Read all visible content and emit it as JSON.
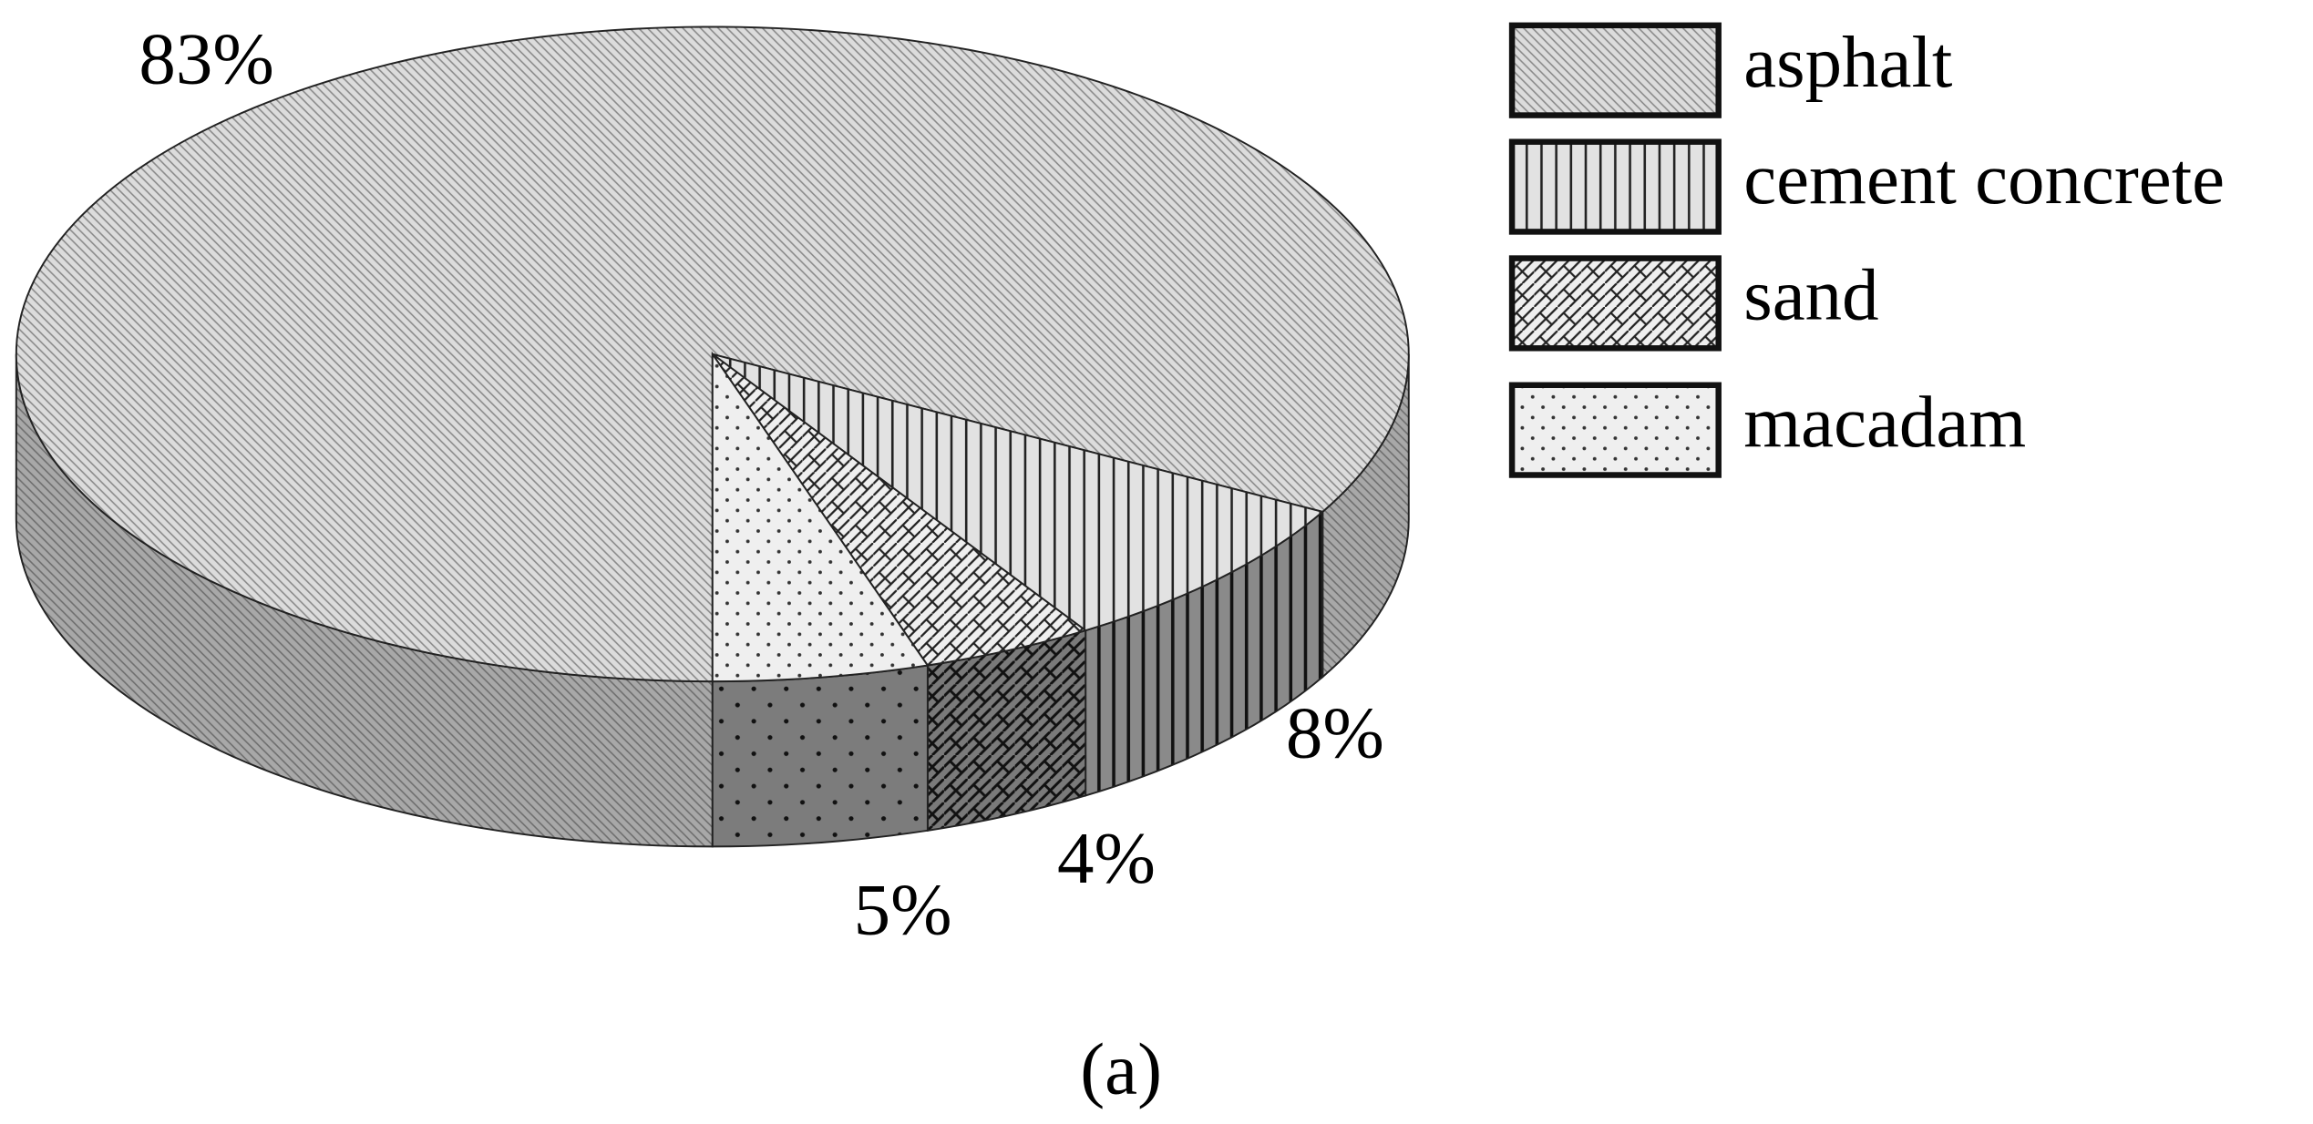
{
  "chart_data": {
    "type": "pie",
    "categories": [
      "asphalt",
      "cement concrete",
      "sand",
      "macadam"
    ],
    "values": [
      83,
      8,
      4,
      5
    ],
    "value_labels": [
      "83%",
      "8%",
      "4%",
      "5%"
    ],
    "caption": "(a)"
  }
}
